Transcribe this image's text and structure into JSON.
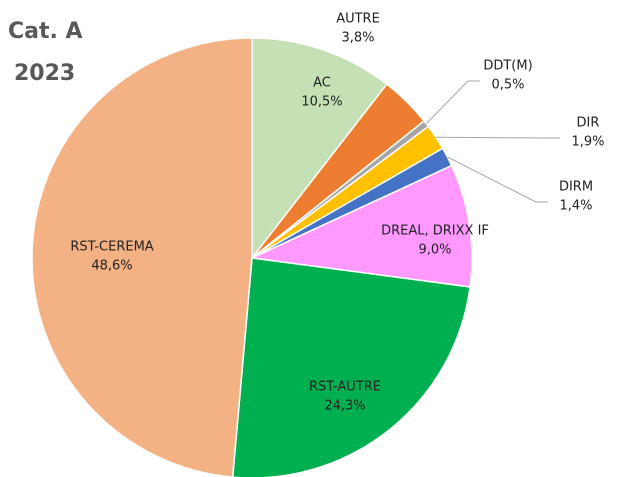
{
  "chart_data": {
    "type": "pie",
    "title": "Cat. A",
    "subtitle": "2023",
    "categories": [
      "AC",
      "AUTRE",
      "DDT(M)",
      "DIR",
      "DIRM",
      "DREAL, DRIXX IF",
      "RST-AUTRE",
      "RST-CEREMA"
    ],
    "values": [
      10.5,
      3.8,
      0.5,
      1.9,
      1.4,
      9.0,
      24.3,
      48.6
    ],
    "value_labels": [
      "10,5%",
      "3,8%",
      "0,5%",
      "1,9%",
      "1,4%",
      "9,0%",
      "24,3%",
      "48,6%"
    ],
    "colors": [
      "#c5e0b4",
      "#ed7d31",
      "#a5a5a5",
      "#ffc000",
      "#4472c4",
      "#ff99ff",
      "#00b050",
      "#f4b183"
    ]
  }
}
